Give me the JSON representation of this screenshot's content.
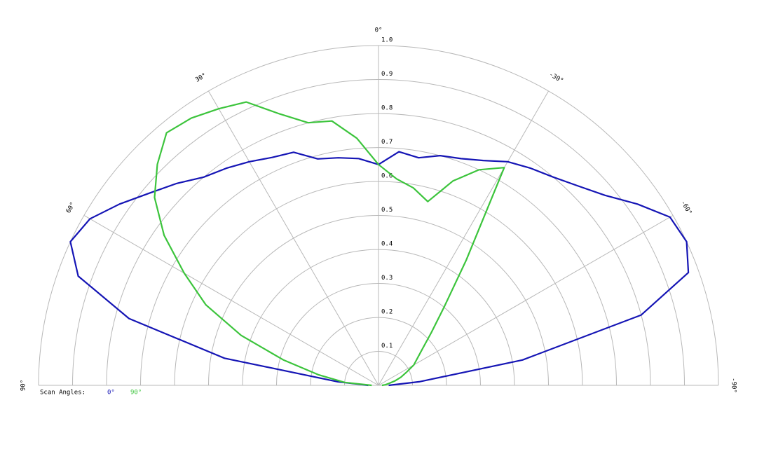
{
  "chart_data": {
    "type": "polar",
    "legend_title": "Scan Angles:",
    "theta": [
      90,
      85,
      80,
      75,
      70,
      65,
      60,
      55,
      50,
      45,
      40,
      35,
      30,
      25,
      20,
      15,
      10,
      5,
      0,
      -5,
      -10,
      -15,
      -20,
      -25,
      -30,
      -35,
      -40,
      -45,
      -50,
      -55,
      -60,
      -65,
      -70,
      -75,
      -80,
      -85,
      -90
    ],
    "series": [
      {
        "name": "0°",
        "color": "#1515b5",
        "values": [
          0.03,
          0.12,
          0.46,
          0.76,
          0.94,
          1.0,
          0.98,
          0.93,
          0.88,
          0.84,
          0.8,
          0.78,
          0.76,
          0.74,
          0.73,
          0.69,
          0.68,
          0.67,
          0.65,
          0.69,
          0.68,
          0.7,
          0.71,
          0.73,
          0.76,
          0.78,
          0.8,
          0.83,
          0.87,
          0.93,
          0.99,
          1.0,
          0.97,
          0.8,
          0.43,
          0.12,
          0.03
        ]
      },
      {
        "name": "90°",
        "color": "#3cc43c",
        "values": [
          0.02,
          0.1,
          0.18,
          0.29,
          0.43,
          0.56,
          0.66,
          0.77,
          0.86,
          0.92,
          0.97,
          0.96,
          0.94,
          0.92,
          0.85,
          0.8,
          0.79,
          0.73,
          0.65,
          0.61,
          0.59,
          0.56,
          0.64,
          0.7,
          0.74,
          0.45,
          0.3,
          0.22,
          0.17,
          0.14,
          0.12,
          0.09,
          0.07,
          0.05,
          0.03,
          0.02,
          0.01
        ]
      }
    ],
    "rlim": [
      0,
      1
    ],
    "rticks": [
      0.1,
      0.2,
      0.3,
      0.4,
      0.5,
      0.6,
      0.7,
      0.8,
      0.9,
      {
        "value": 1,
        "label": "1.0"
      }
    ],
    "thetaticks": [
      {
        "value": 90,
        "label": "90°"
      },
      {
        "value": 60,
        "label": "60°"
      },
      {
        "value": 30,
        "label": "30°"
      },
      {
        "value": 0,
        "label": "0°"
      },
      {
        "value": -30,
        "label": "-30°"
      },
      {
        "value": -60,
        "label": "-60°"
      },
      {
        "value": -90,
        "label": "-90°"
      }
    ],
    "grid": true
  }
}
